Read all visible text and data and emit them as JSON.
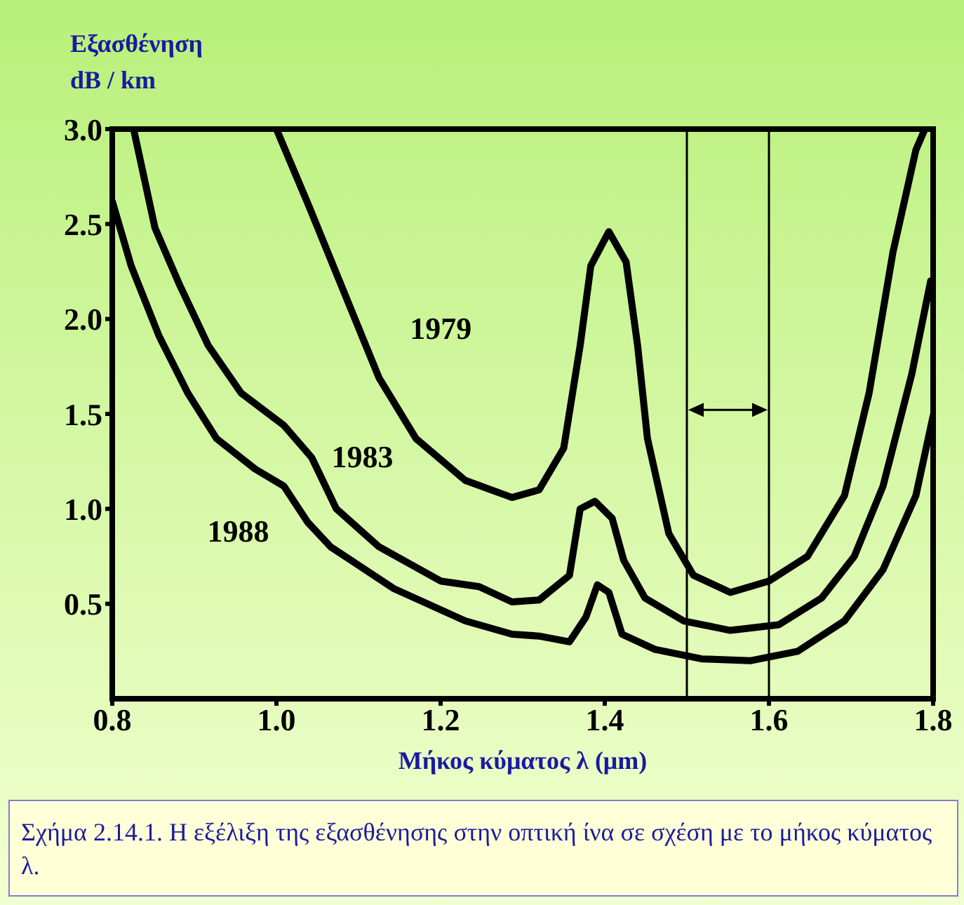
{
  "chart_data": {
    "type": "line",
    "xlabel": "Μήκος κύματος λ (μm)",
    "ylabel": "Εξασθένηση\ndB / km",
    "annotations": [
      "Σχήμα 2.14.1. Η εξέλιξη της εξασθένησης στην οπτική ίνα σε σχέση με το μήκος κύματος λ."
    ],
    "xlim": [
      0.8,
      1.8
    ],
    "ylim": [
      0,
      3
    ],
    "xticks": [
      {
        "value": 0.8,
        "label": "0.8"
      },
      {
        "value": 1,
        "label": "1.0"
      },
      {
        "value": 1.2,
        "label": "1.2"
      },
      {
        "value": 1.4,
        "label": "1.4"
      },
      {
        "value": 1.6,
        "label": "1.6"
      },
      {
        "value": 1.8,
        "label": "1.8"
      }
    ],
    "yticks": [
      {
        "value": 0.5,
        "label": "0.5"
      },
      {
        "value": 1,
        "label": "1.0"
      },
      {
        "value": 1.5,
        "label": "1.5"
      },
      {
        "value": 2,
        "label": "2.0"
      },
      {
        "value": 2.5,
        "label": "2.5"
      },
      {
        "value": 3,
        "label": "3.0"
      }
    ],
    "grid": false,
    "legend": false,
    "marker": "none",
    "line_style": "solid",
    "ref_lines": [
      {
        "axis": "x",
        "value": 1.5,
        "color": "#000000"
      },
      {
        "axis": "x",
        "value": 1.6,
        "color": "#000000"
      }
    ],
    "series": [
      {
        "name": "1979",
        "color": "#000000",
        "x": [
          1.0,
          1.04,
          1.09,
          1.125,
          1.17,
          1.23,
          1.287,
          1.32,
          1.35,
          1.37,
          1.383,
          1.405,
          1.426,
          1.44,
          1.452,
          1.478,
          1.508,
          1.553,
          1.6,
          1.647,
          1.692,
          1.722,
          1.751,
          1.779,
          1.79
        ],
        "values": [
          3.0,
          2.59,
          2.06,
          1.69,
          1.37,
          1.15,
          1.06,
          1.1,
          1.32,
          1.86,
          2.28,
          2.46,
          2.3,
          1.86,
          1.37,
          0.87,
          0.65,
          0.56,
          0.62,
          0.75,
          1.07,
          1.61,
          2.35,
          2.89,
          3.0
        ]
      },
      {
        "name": "1983",
        "color": "#000000",
        "x": [
          0.826,
          0.852,
          0.882,
          0.917,
          0.957,
          1.009,
          1.043,
          1.073,
          1.125,
          1.2,
          1.247,
          1.287,
          1.32,
          1.357,
          1.37,
          1.388,
          1.409,
          1.423,
          1.449,
          1.496,
          1.553,
          1.612,
          1.664,
          1.704,
          1.739,
          1.774,
          1.797
        ],
        "values": [
          3.0,
          2.48,
          2.18,
          1.86,
          1.61,
          1.44,
          1.27,
          1.0,
          0.8,
          0.62,
          0.59,
          0.51,
          0.52,
          0.65,
          1.0,
          1.04,
          0.95,
          0.73,
          0.53,
          0.41,
          0.36,
          0.39,
          0.53,
          0.75,
          1.12,
          1.71,
          2.2
        ]
      },
      {
        "name": "1988",
        "color": "#000000",
        "x": [
          0.8,
          0.823,
          0.857,
          0.892,
          0.927,
          0.974,
          1.009,
          1.038,
          1.066,
          1.143,
          1.23,
          1.287,
          1.32,
          1.357,
          1.377,
          1.391,
          1.405,
          1.421,
          1.461,
          1.518,
          1.577,
          1.635,
          1.692,
          1.739,
          1.779,
          1.8
        ],
        "values": [
          2.62,
          2.28,
          1.91,
          1.61,
          1.37,
          1.21,
          1.12,
          0.93,
          0.8,
          0.58,
          0.41,
          0.34,
          0.33,
          0.3,
          0.43,
          0.6,
          0.56,
          0.34,
          0.26,
          0.21,
          0.2,
          0.25,
          0.41,
          0.68,
          1.07,
          1.49
        ]
      }
    ]
  }
}
